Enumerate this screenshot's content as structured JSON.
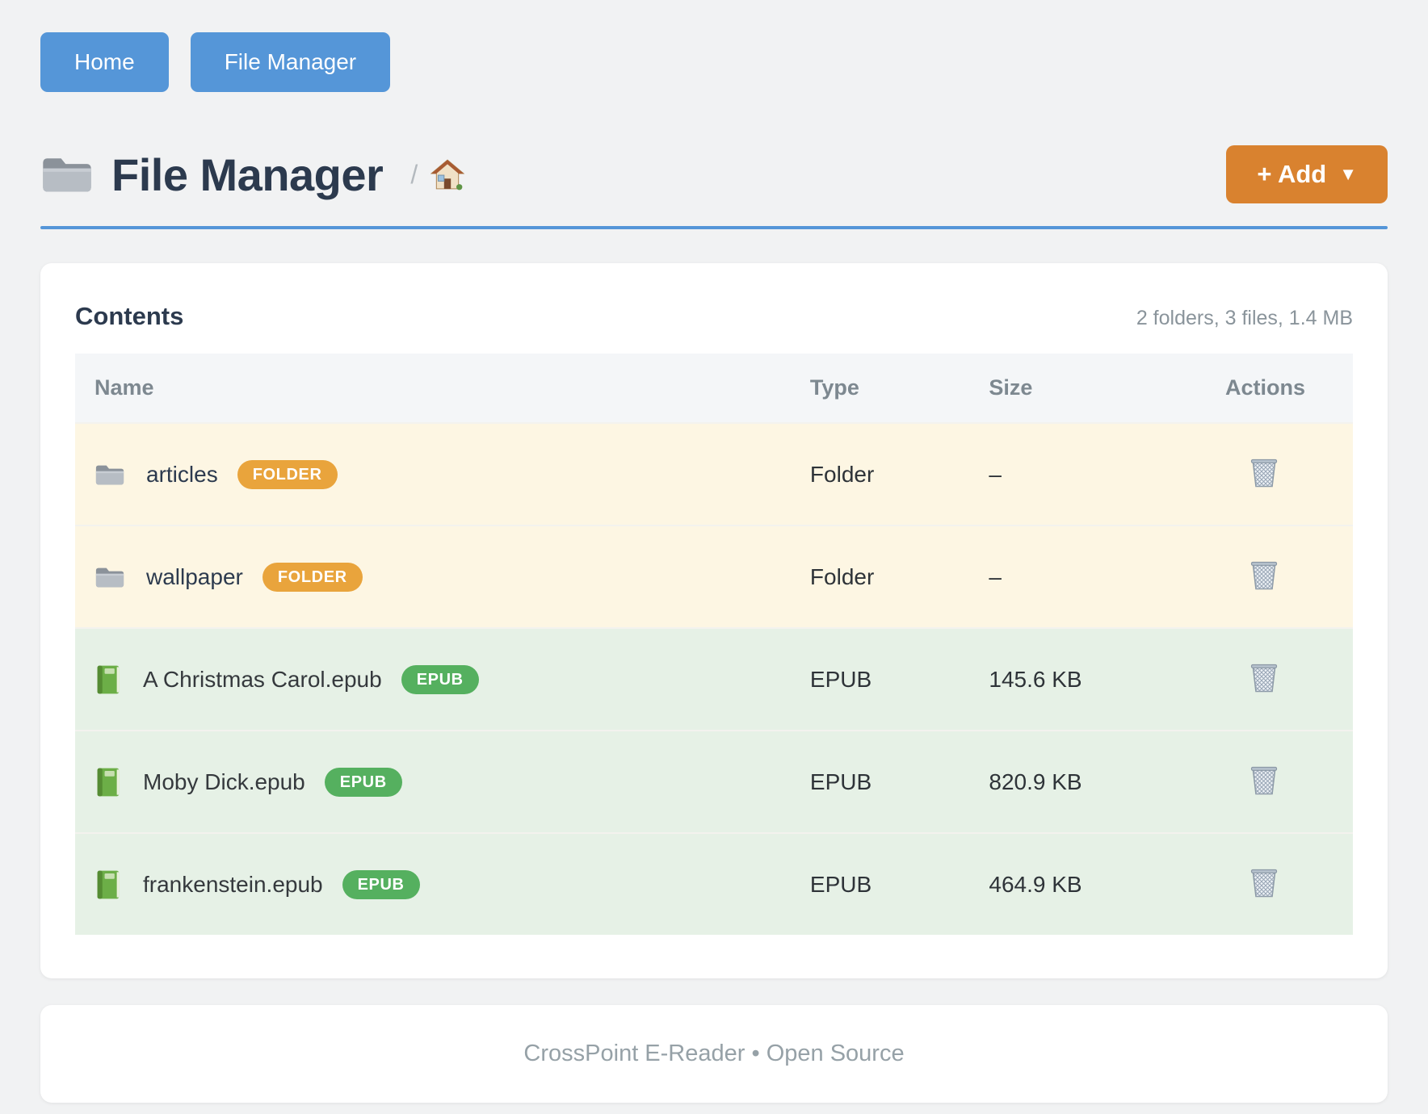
{
  "nav": {
    "buttons": [
      {
        "label": "Home"
      },
      {
        "label": "File Manager"
      }
    ]
  },
  "header": {
    "title": "File Manager",
    "title_icon": "folder-icon",
    "breadcrumb": {
      "separator": "/",
      "home_icon": "home-icon"
    },
    "add_button": {
      "label": "+ Add",
      "caret": "▼"
    }
  },
  "contents": {
    "heading": "Contents",
    "summary": "2 folders, 3 files, 1.4 MB",
    "table": {
      "columns": [
        "Name",
        "Type",
        "Size",
        "Actions"
      ],
      "row_action_icon": "trash-icon",
      "rows": [
        {
          "name": "articles",
          "badge": "FOLDER",
          "type": "Folder",
          "size": "–",
          "kind": "folder",
          "icon": "folder-icon"
        },
        {
          "name": "wallpaper",
          "badge": "FOLDER",
          "type": "Folder",
          "size": "–",
          "kind": "folder",
          "icon": "folder-icon"
        },
        {
          "name": "A Christmas Carol.epub",
          "badge": "EPUB",
          "type": "EPUB",
          "size": "145.6 KB",
          "kind": "epub",
          "icon": "book-icon"
        },
        {
          "name": "Moby Dick.epub",
          "badge": "EPUB",
          "type": "EPUB",
          "size": "820.9 KB",
          "kind": "epub",
          "icon": "book-icon"
        },
        {
          "name": "frankenstein.epub",
          "badge": "EPUB",
          "type": "EPUB",
          "size": "464.9 KB",
          "kind": "epub",
          "icon": "book-icon"
        }
      ]
    }
  },
  "footer": {
    "text": "CrossPoint E-Reader • Open Source"
  },
  "colors": {
    "accent_blue": "#5596d8",
    "accent_orange": "#d9822f",
    "badge_folder": "#e9a43c",
    "badge_epub": "#55b05f",
    "row_folder_bg": "#fdf6e3",
    "row_epub_bg": "#e6f1e6",
    "page_bg": "#f1f2f3",
    "title_text": "#2c3a4e"
  }
}
